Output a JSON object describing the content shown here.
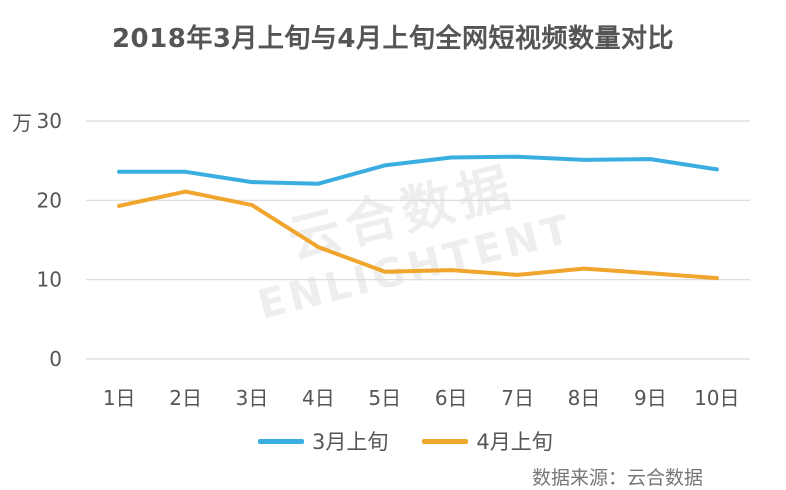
{
  "chart_data": {
    "type": "line",
    "title": "2018年3月上旬与4月上旬全网短视频数量对比",
    "y_unit": "万",
    "xlabel": "",
    "ylabel": "",
    "categories": [
      "1日",
      "2日",
      "3日",
      "4日",
      "5日",
      "6日",
      "7日",
      "8日",
      "9日",
      "10日"
    ],
    "ylim": [
      0,
      30
    ],
    "yticks": [
      0,
      10,
      20,
      30
    ],
    "grid": true,
    "legend": "bottom",
    "series": [
      {
        "name": "3月上旬",
        "color": "#3aaee0",
        "values": [
          23.6,
          23.6,
          22.3,
          22.1,
          24.4,
          25.4,
          25.5,
          25.1,
          25.2,
          23.9
        ]
      },
      {
        "name": "4月上旬",
        "color": "#f0a52c",
        "values": [
          19.3,
          21.1,
          19.4,
          14.1,
          11.0,
          11.2,
          10.6,
          11.4,
          10.8,
          10.2
        ]
      }
    ]
  },
  "watermark": {
    "cn": "云合数据",
    "en": "ENLIGHTENT"
  },
  "source_note": "数据来源：云合数据"
}
